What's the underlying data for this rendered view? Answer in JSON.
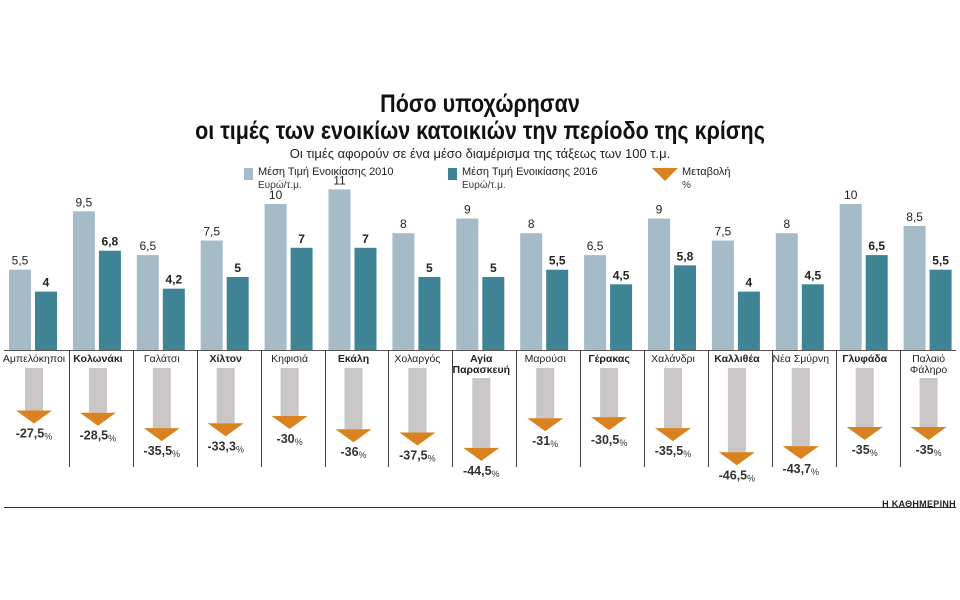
{
  "chart_data": {
    "type": "bar",
    "title_line1": "Πόσο υποχώρησαν",
    "title_line2": "οι τιμές των ενοικίων κατοικιών την περίοδο της κρίσης",
    "subtitle": "Οι τιμές αφορούν σε ένα μέσο διαμέρισμα της τάξεως των 100 τ.μ.",
    "legend": [
      {
        "line1": "Μέση Τιμή Ενοικίασης 2010",
        "line2": "Ευρώ/τ.μ.",
        "color": "#a5bcc8"
      },
      {
        "line1": "Μέση Τιμή Ενοικίασης 2016",
        "line2": "Ευρώ/τ.μ.",
        "color": "#3e8494"
      },
      {
        "line1": "Μεταβολή",
        "line2": "%",
        "color": "#d9821f"
      }
    ],
    "categories": [
      {
        "name": [
          "Αμπελόκηποι"
        ],
        "bold": false
      },
      {
        "name": [
          "Κολωνάκι"
        ],
        "bold": true
      },
      {
        "name": [
          "Γαλάτσι"
        ],
        "bold": false
      },
      {
        "name": [
          "Χίλτον"
        ],
        "bold": true
      },
      {
        "name": [
          "Κηφισιά"
        ],
        "bold": false
      },
      {
        "name": [
          "Εκάλη"
        ],
        "bold": true
      },
      {
        "name": [
          "Χολαργός"
        ],
        "bold": false
      },
      {
        "name": [
          "Αγία",
          "Παρασκευή"
        ],
        "bold": true
      },
      {
        "name": [
          "Μαρούσι"
        ],
        "bold": false
      },
      {
        "name": [
          "Γέρακας"
        ],
        "bold": true
      },
      {
        "name": [
          "Χαλάνδρι"
        ],
        "bold": false
      },
      {
        "name": [
          "Καλλιθέα"
        ],
        "bold": true
      },
      {
        "name": [
          "Νέα Σμύρνη"
        ],
        "bold": false
      },
      {
        "name": [
          "Γλυφάδα"
        ],
        "bold": true
      },
      {
        "name": [
          "Παλαιό",
          "Φάληρο"
        ],
        "bold": false
      }
    ],
    "series": [
      {
        "name": "Μέση Τιμή Ενοικίασης 2010",
        "values": [
          5.5,
          9.5,
          6.5,
          7.5,
          10,
          11,
          8,
          9,
          8,
          6.5,
          9,
          7.5,
          8,
          10,
          8.5
        ],
        "labels": [
          "5,5",
          "9,5",
          "6,5",
          "7,5",
          "10",
          "11",
          "8",
          "9",
          "8",
          "6,5",
          "9",
          "7,5",
          "8",
          "10",
          "8,5"
        ],
        "color": "#a5bcc8"
      },
      {
        "name": "Μέση Τιμή Ενοικίασης 2016",
        "values": [
          4,
          6.8,
          4.2,
          5,
          7,
          7,
          5,
          5,
          5.5,
          4.5,
          5.8,
          4,
          4.5,
          6.5,
          5.5
        ],
        "labels": [
          "4",
          "6,8",
          "4,2",
          "5",
          "7",
          "7",
          "5",
          "5",
          "5,5",
          "4,5",
          "5,8",
          "4",
          "4,5",
          "6,5",
          "5,5"
        ],
        "color": "#3e8494"
      }
    ],
    "change": {
      "name": "Μεταβολή %",
      "values": [
        -27.5,
        -28.5,
        -35.5,
        -33.3,
        -30,
        -36,
        -37.5,
        -44.5,
        -31,
        -30.5,
        -35.5,
        -46.5,
        -43.7,
        -35,
        -35
      ],
      "labels": [
        "-27,5",
        "-28,5",
        "-35,5",
        "-33,3",
        "-30",
        "-36",
        "-37,5",
        "-44,5",
        "-31",
        "-30,5",
        "-35,5",
        "-46,5",
        "-43,7",
        "-35",
        "-35"
      ],
      "unit": "%",
      "stem_color": "#c9c6c5",
      "arrow_color": "#d9821f"
    },
    "ylim": [
      0,
      11
    ]
  },
  "credit": "Η ΚΑΘΗΜΕΡΙΝΗ"
}
